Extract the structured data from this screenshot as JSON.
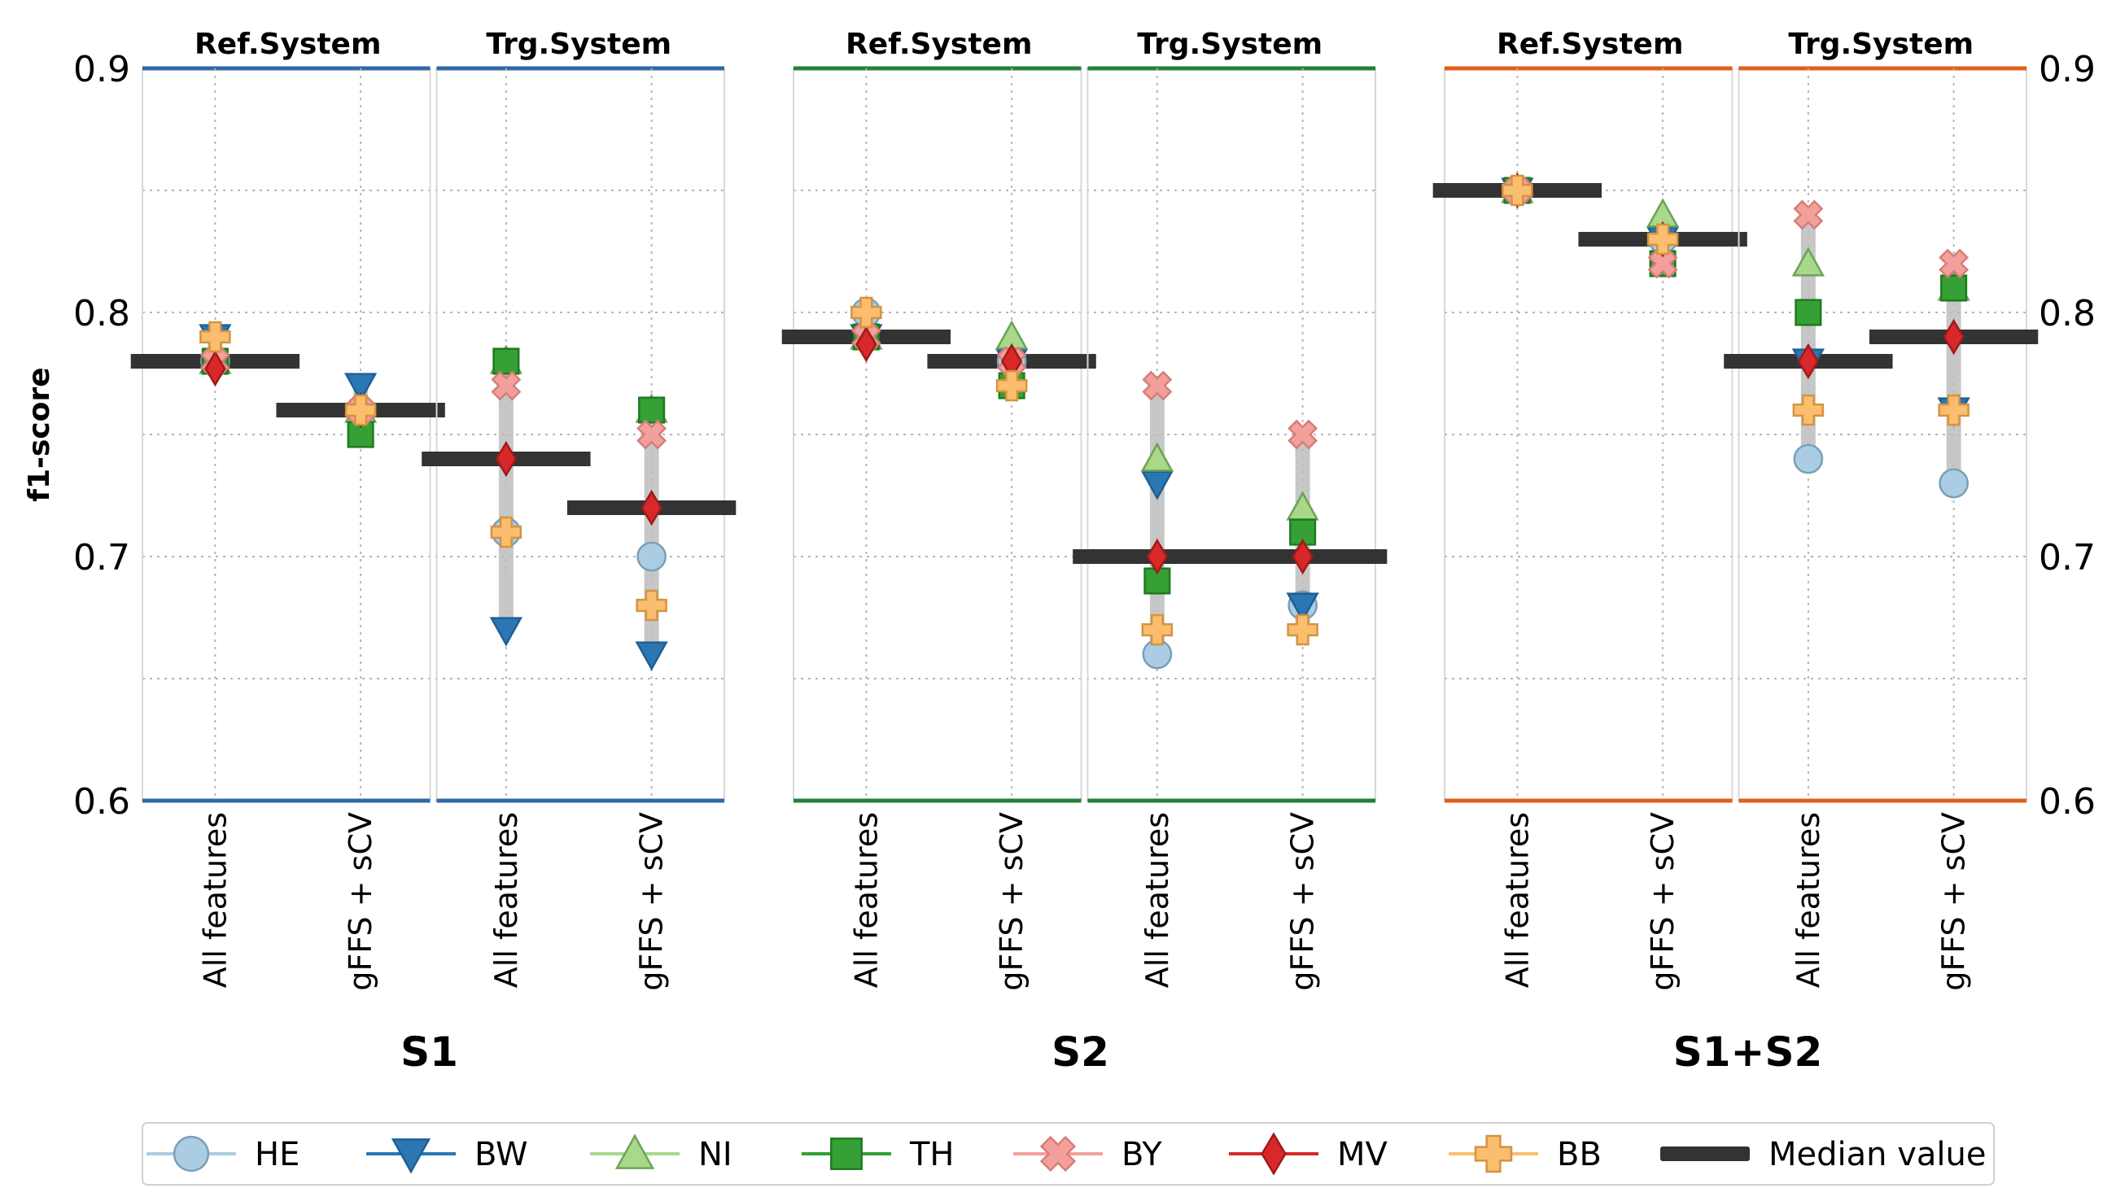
{
  "chart_data": {
    "type": "scatter",
    "ylabel": "f1-score",
    "ylim": [
      0.6,
      0.9
    ],
    "yticks": [
      "0.6",
      "0.7",
      "0.8",
      "0.9"
    ],
    "panel_subtitles": [
      "Ref.System",
      "Trg.System"
    ],
    "x_categories": [
      "All features",
      "gFFS + sCV"
    ],
    "panels": [
      {
        "name": "S1",
        "color": "#2f6aa8",
        "groups": [
          {
            "subtitle": "Ref.System",
            "columns": [
              {
                "category": "All features",
                "median": 0.78,
                "values": {
                  "HE": 0.78,
                  "BW": 0.79,
                  "NI": 0.78,
                  "TH": 0.78,
                  "BY": 0.78,
                  "MV": 0.777,
                  "BB": 0.79
                }
              },
              {
                "category": "gFFS + sCV",
                "median": 0.76,
                "values": {
                  "HE": 0.76,
                  "BW": 0.77,
                  "NI": 0.76,
                  "TH": 0.75,
                  "BY": 0.76,
                  "MV": 0.76,
                  "BB": 0.76
                }
              }
            ]
          },
          {
            "subtitle": "Trg.System",
            "columns": [
              {
                "category": "All features",
                "median": 0.74,
                "values": {
                  "HE": 0.71,
                  "BW": 0.67,
                  "NI": 0.78,
                  "TH": 0.78,
                  "BY": 0.77,
                  "MV": 0.74,
                  "BB": 0.71
                }
              },
              {
                "category": "gFFS + sCV",
                "median": 0.72,
                "values": {
                  "HE": 0.7,
                  "BW": 0.66,
                  "NI": 0.76,
                  "TH": 0.76,
                  "BY": 0.75,
                  "MV": 0.72,
                  "BB": 0.68
                }
              }
            ]
          }
        ]
      },
      {
        "name": "S2",
        "color": "#24803c",
        "groups": [
          {
            "subtitle": "Ref.System",
            "columns": [
              {
                "category": "All features",
                "median": 0.79,
                "values": {
                  "HE": 0.8,
                  "BW": 0.79,
                  "NI": 0.79,
                  "TH": 0.79,
                  "BY": 0.79,
                  "MV": 0.787,
                  "BB": 0.8
                }
              },
              {
                "category": "gFFS + sCV",
                "median": 0.78,
                "values": {
                  "HE": 0.78,
                  "BW": 0.78,
                  "NI": 0.79,
                  "TH": 0.77,
                  "BY": 0.78,
                  "MV": 0.78,
                  "BB": 0.77
                }
              }
            ]
          },
          {
            "subtitle": "Trg.System",
            "columns": [
              {
                "category": "All features",
                "median": 0.7,
                "values": {
                  "HE": 0.66,
                  "BW": 0.73,
                  "NI": 0.74,
                  "TH": 0.69,
                  "BY": 0.77,
                  "MV": 0.7,
                  "BB": 0.67
                }
              },
              {
                "category": "gFFS + sCV",
                "median": 0.7,
                "values": {
                  "HE": 0.68,
                  "BW": 0.68,
                  "NI": 0.72,
                  "TH": 0.71,
                  "BY": 0.75,
                  "MV": 0.7,
                  "BB": 0.67
                }
              }
            ]
          }
        ]
      },
      {
        "name": "S1+S2",
        "color": "#e0601c",
        "groups": [
          {
            "subtitle": "Ref.System",
            "columns": [
              {
                "category": "All features",
                "median": 0.85,
                "values": {
                  "HE": 0.85,
                  "BW": 0.85,
                  "NI": 0.85,
                  "TH": 0.85,
                  "BY": 0.85,
                  "MV": 0.85,
                  "BB": 0.85
                }
              },
              {
                "category": "gFFS + sCV",
                "median": 0.83,
                "values": {
                  "HE": 0.83,
                  "BW": 0.83,
                  "NI": 0.84,
                  "TH": 0.82,
                  "BY": 0.82,
                  "MV": 0.83,
                  "BB": 0.83
                }
              }
            ]
          },
          {
            "subtitle": "Trg.System",
            "columns": [
              {
                "category": "All features",
                "median": 0.78,
                "values": {
                  "HE": 0.74,
                  "BW": 0.78,
                  "NI": 0.82,
                  "TH": 0.8,
                  "BY": 0.84,
                  "MV": 0.78,
                  "BB": 0.76
                }
              },
              {
                "category": "gFFS + sCV",
                "median": 0.79,
                "values": {
                  "HE": 0.73,
                  "BW": 0.76,
                  "NI": 0.81,
                  "TH": 0.81,
                  "BY": 0.82,
                  "MV": 0.79,
                  "BB": 0.76
                }
              }
            ]
          }
        ]
      }
    ],
    "legend": {
      "position": "bottom",
      "entries": [
        {
          "key": "HE",
          "label": "HE",
          "marker": "circle",
          "fill": "#aacde3",
          "edge": "#7a9fb8",
          "line": "#aacde3"
        },
        {
          "key": "BW",
          "label": "BW",
          "marker": "triangle-down",
          "fill": "#2a77b4",
          "edge": "#1f5f94",
          "line": "#2a77b4"
        },
        {
          "key": "NI",
          "label": "NI",
          "marker": "triangle-up",
          "fill": "#a9d88b",
          "edge": "#6da258",
          "line": "#a9d88b"
        },
        {
          "key": "TH",
          "label": "TH",
          "marker": "square",
          "fill": "#35a035",
          "edge": "#1f7a1f",
          "line": "#35a035"
        },
        {
          "key": "BY",
          "label": "BY",
          "marker": "x",
          "fill": "#f3a09c",
          "edge": "#d77d79",
          "line": "#f3a09c"
        },
        {
          "key": "MV",
          "label": "MV",
          "marker": "diamond",
          "fill": "#d8282a",
          "edge": "#a01a1a",
          "line": "#d8282a"
        },
        {
          "key": "BB",
          "label": "BB",
          "marker": "plus",
          "fill": "#fbbd6e",
          "edge": "#d39440",
          "line": "#fbbd6e"
        },
        {
          "key": "median",
          "label": "Median value",
          "marker": "bar",
          "fill": "#333333",
          "edge": "#333333",
          "line": "#333333"
        }
      ]
    }
  }
}
